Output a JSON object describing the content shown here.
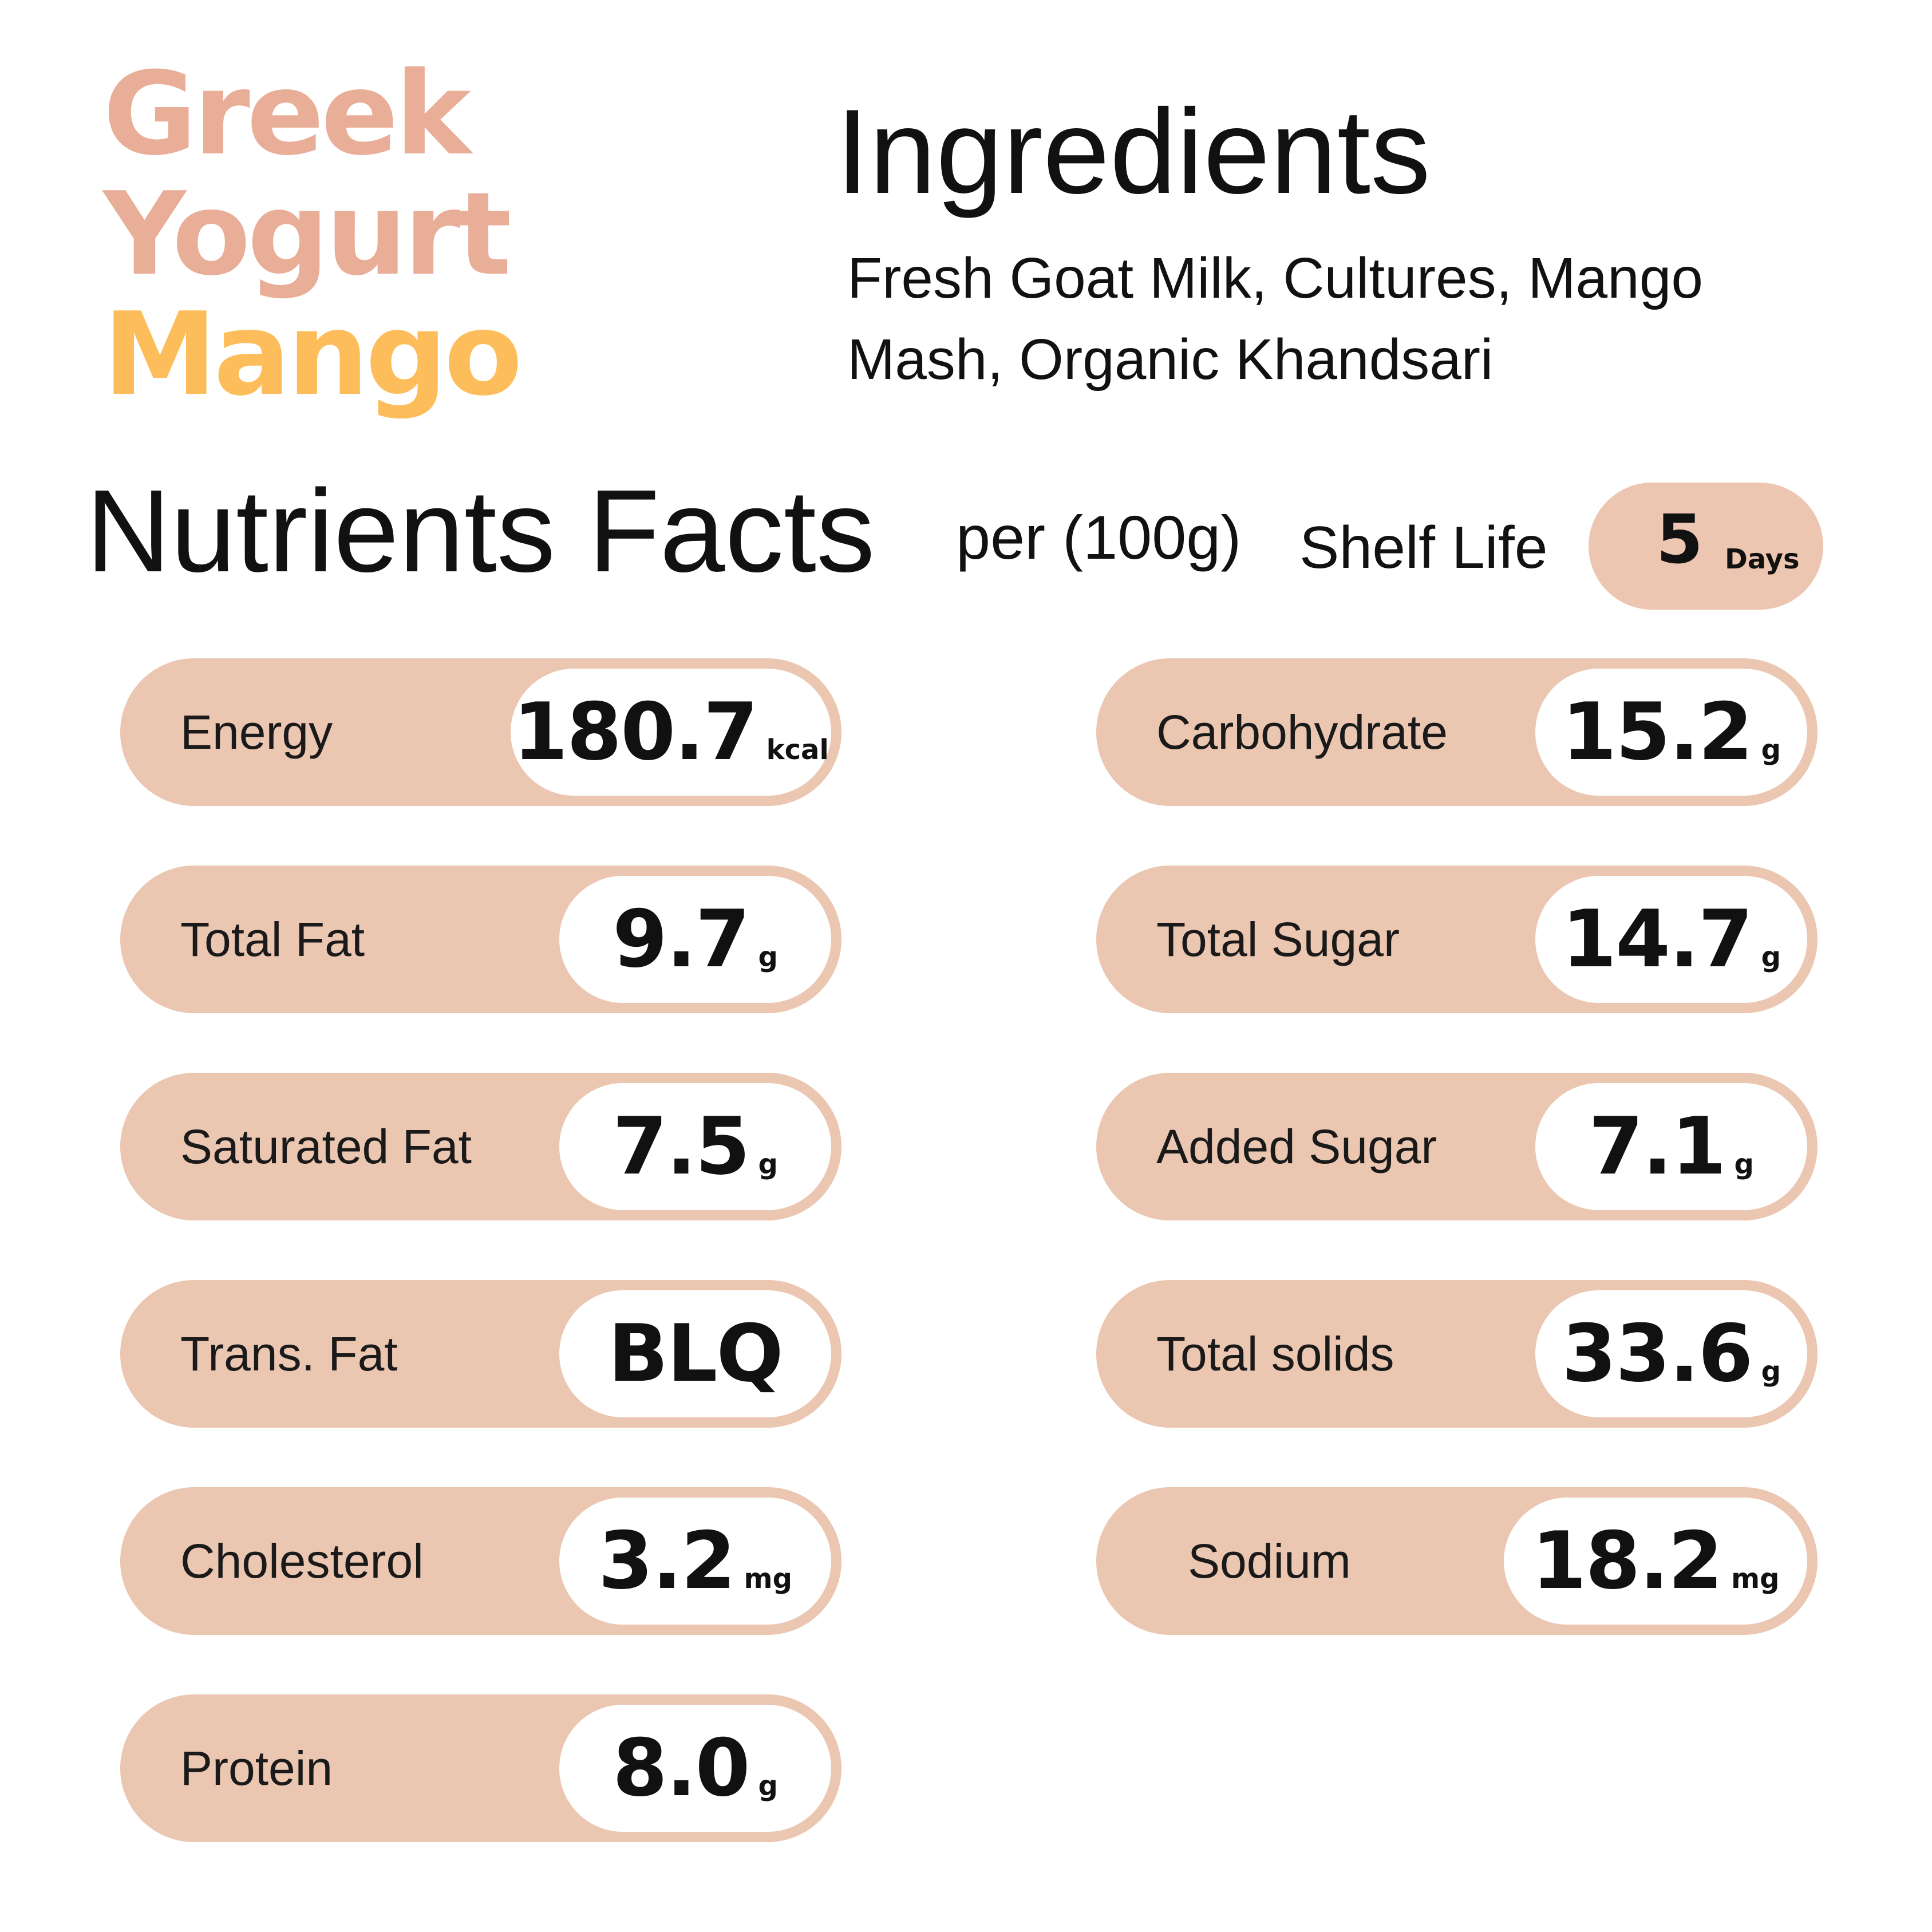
{
  "product": {
    "title_line1": "Greek",
    "title_line2": "Yogurt",
    "title_line3": "Mango"
  },
  "ingredients": {
    "heading": "Ingredients",
    "text": "Fresh Goat Milk, Cultures, Mango Mash, Organic Khandsari"
  },
  "nutrients": {
    "heading": "Nutrients Facts",
    "per": "per (100g)",
    "shelf_life_label": "Shelf Life",
    "shelf_life_value": "5",
    "shelf_life_unit": "Days",
    "items": [
      {
        "label": "Energy",
        "value": "180.7",
        "unit": "kcal"
      },
      {
        "label": "Carbohydrate",
        "value": "15.2",
        "unit": "g"
      },
      {
        "label": "Total Fat",
        "value": "9.7",
        "unit": "g"
      },
      {
        "label": "Total Sugar",
        "value": "14.7",
        "unit": "g"
      },
      {
        "label": "Saturated Fat",
        "value": "7.5",
        "unit": "g"
      },
      {
        "label": "Added Sugar",
        "value": "7.1",
        "unit": "g"
      },
      {
        "label": "Trans. Fat",
        "value": "BLQ",
        "unit": ""
      },
      {
        "label": "Total solids",
        "value": "33.6",
        "unit": "g"
      },
      {
        "label": "Cholesterol",
        "value": "3.2",
        "unit": "mg"
      },
      {
        "label": "Sodium",
        "value": "18.2",
        "unit": "mg"
      },
      {
        "label": "Protein",
        "value": "8.0",
        "unit": "g"
      }
    ]
  },
  "colors": {
    "title_peach": "#e9ae98",
    "title_mango": "#fdbd5a",
    "pill": "#ebc6b1"
  }
}
